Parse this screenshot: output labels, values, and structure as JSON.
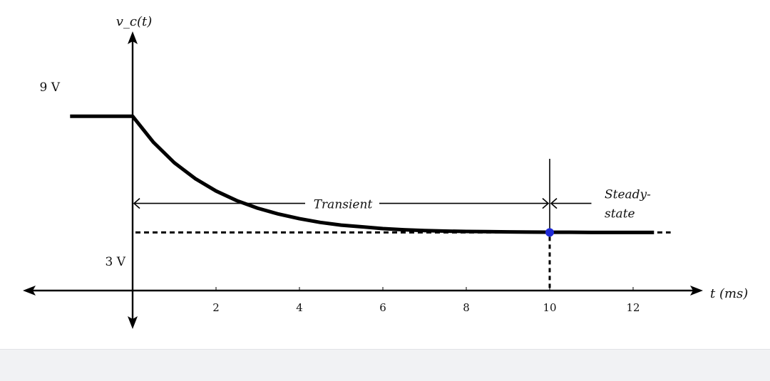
{
  "colors": {
    "curve": "#000000",
    "steady_point": "#1f2ad6",
    "footer": "#f1f2f4"
  },
  "chart_data": {
    "type": "line",
    "title": "",
    "ylabel": "v_c(t)",
    "xlabel": "t (ms)",
    "xticks": [
      2,
      4,
      6,
      8,
      10,
      12
    ],
    "xlim": [
      -2.6,
      13.4
    ],
    "ylim": [
      -1.2,
      12
    ],
    "y_levels": [
      {
        "label": "9 V",
        "value": 9
      },
      {
        "label": "3 V",
        "value": 3
      }
    ],
    "series": [
      {
        "x": [
          -1.5,
          0,
          0.5,
          1,
          1.5,
          2,
          2.5,
          3,
          3.5,
          4,
          4.5,
          5,
          5.5,
          6,
          6.5,
          7,
          7.5,
          8,
          8.5,
          9,
          9.5,
          10,
          10.5,
          11,
          11.5,
          12,
          12.5
        ],
        "y": [
          9,
          9,
          7.65,
          6.6,
          5.78,
          5.14,
          4.64,
          4.25,
          3.95,
          3.71,
          3.52,
          3.38,
          3.29,
          3.2,
          3.14,
          3.1,
          3.07,
          3.05,
          3.04,
          3.03,
          3.02,
          3.01,
          3.01,
          3.0,
          3.0,
          3.0,
          3.0
        ]
      }
    ],
    "steady_state_point": {
      "x": 10,
      "y": 3
    },
    "annotations": {
      "transient": "Transient",
      "steady_line1": "Steady-",
      "steady_line2": "state"
    }
  }
}
